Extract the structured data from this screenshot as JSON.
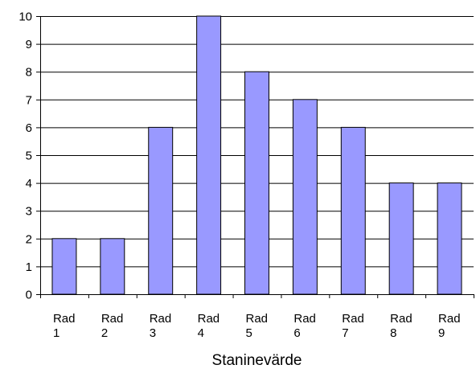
{
  "chart_data": {
    "type": "bar",
    "title": "",
    "xlabel": "Staninevärde",
    "ylabel": "",
    "categories": [
      [
        "Rad",
        "1"
      ],
      [
        "Rad",
        "2"
      ],
      [
        "Rad",
        "3"
      ],
      [
        "Rad",
        "4"
      ],
      [
        "Rad",
        "5"
      ],
      [
        "Rad",
        "6"
      ],
      [
        "Rad",
        "7"
      ],
      [
        "Rad",
        "8"
      ],
      [
        "Rad",
        "9"
      ]
    ],
    "values": [
      2,
      2,
      6,
      10,
      8,
      7,
      6,
      4,
      4
    ],
    "ylim": [
      0,
      10
    ],
    "yticks": [
      0,
      1,
      2,
      3,
      4,
      5,
      6,
      7,
      8,
      9,
      10
    ],
    "grid": true,
    "legend": "none",
    "bar_color": "#9999ff",
    "bar_edge_color": "#000000"
  }
}
